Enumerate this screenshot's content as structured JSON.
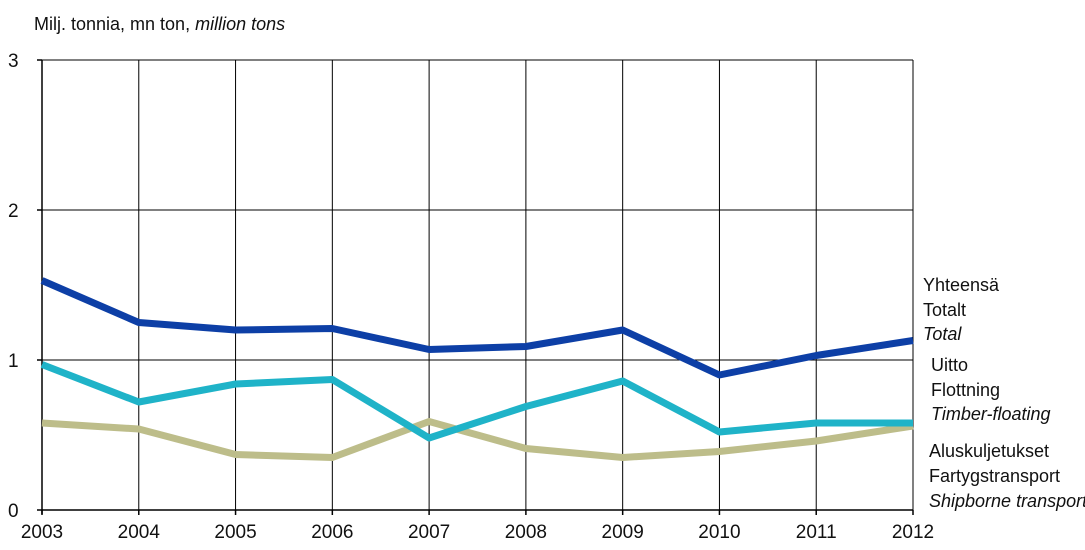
{
  "chart_data": {
    "type": "line",
    "ylabel_parts": [
      "Milj. tonnia, mn ton, ",
      "million tons"
    ],
    "x": [
      "2003",
      "2004",
      "2005",
      "2006",
      "2007",
      "2008",
      "2009",
      "2010",
      "2011",
      "2012"
    ],
    "ylim": [
      0,
      3
    ],
    "yticks": [
      "0",
      "1",
      "2",
      "3"
    ],
    "grid": true,
    "legend_position": "right",
    "series": [
      {
        "key": "total",
        "labels": [
          "Yhteensä",
          "Totalt",
          "Total"
        ],
        "color": "#0D3FA6",
        "values": [
          1.53,
          1.25,
          1.2,
          1.21,
          1.07,
          1.09,
          1.2,
          0.9,
          1.03,
          1.13
        ]
      },
      {
        "key": "timber",
        "labels": [
          "Uitto",
          "Flottning",
          "Timber-floating"
        ],
        "color": "#1FB3C8",
        "values": [
          0.97,
          0.72,
          0.84,
          0.87,
          0.48,
          0.69,
          0.86,
          0.52,
          0.58,
          0.58
        ]
      },
      {
        "key": "ship",
        "labels": [
          "Aluskuljetukset",
          "Fartygstransport",
          "Shipborne transport"
        ],
        "color": "#BDBD8A",
        "values": [
          0.58,
          0.54,
          0.37,
          0.35,
          0.59,
          0.41,
          0.35,
          0.39,
          0.46,
          0.56
        ]
      }
    ]
  }
}
